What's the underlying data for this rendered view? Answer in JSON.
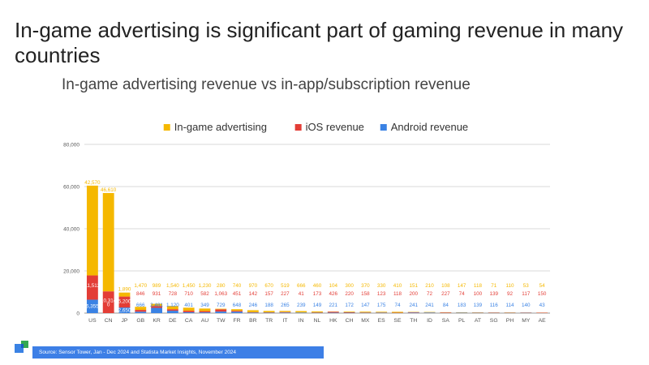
{
  "slide": {
    "title": "In-game advertising is significant part of gaming revenue in many countries",
    "subtitle": "In-game advertising revenue vs in-app/subscription revenue",
    "source": "Source: Sensor Tower, Jan - Dec 2024 and Statista Market Insights, November 2024"
  },
  "colors": {
    "advertising": "#f5b800",
    "ios": "#e33d36",
    "android": "#3a82e4",
    "grid": "#d9d9d9",
    "axis_text": "#555555",
    "source_bar": "#3d7fe6"
  },
  "chart_data": {
    "type": "bar",
    "stacked": true,
    "legend_position": "top-center",
    "grid": true,
    "ylim": [
      0,
      80000
    ],
    "yticks": [
      "0",
      "20,000",
      "40,000",
      "60,000",
      "80,000"
    ],
    "ytick_values": [
      0,
      20000,
      40000,
      60000,
      80000
    ],
    "categories": [
      "US",
      "CN",
      "JP",
      "GB",
      "KR",
      "DE",
      "CA",
      "AU",
      "TW",
      "FR",
      "BR",
      "TR",
      "IT",
      "IN",
      "NL",
      "HK",
      "CH",
      "MX",
      "ES",
      "SE",
      "TH",
      "ID",
      "SA",
      "PL",
      "AT",
      "SG",
      "PH",
      "MY",
      "AE"
    ],
    "series": [
      {
        "name": "Android revenue",
        "color": "#3a82e4",
        "values": [
          6355,
          0,
          2650,
          666,
          2481,
          1120,
          401,
          349,
          729,
          648,
          246,
          188,
          265,
          239,
          149,
          221,
          172,
          147,
          175,
          74,
          241,
          241,
          84,
          183,
          139,
          116,
          114,
          140,
          43
        ],
        "labels": [
          "6,355",
          "",
          "2,650",
          "666",
          "2,481",
          "1,120",
          "401",
          "349",
          "729",
          "648",
          "246",
          "188",
          "265",
          "239",
          "149",
          "221",
          "172",
          "147",
          "175",
          "74",
          "241",
          "241",
          "84",
          "183",
          "139",
          "116",
          "114",
          "140",
          "43"
        ]
      },
      {
        "name": "iOS revenue",
        "color": "#e33d36",
        "values": [
          11512,
          10314,
          5200,
          846,
          931,
          728,
          710,
          582,
          1063,
          451,
          142,
          157,
          227,
          41,
          173,
          426,
          220,
          158,
          123,
          118,
          200,
          72,
          227,
          74,
          100,
          139,
          92,
          117,
          150
        ],
        "labels": [
          "11,512",
          "10,314",
          "5,200",
          "846",
          "931",
          "728",
          "710",
          "582",
          "1,063",
          "451",
          "142",
          "157",
          "227",
          "41",
          "173",
          "426",
          "220",
          "158",
          "123",
          "118",
          "200",
          "72",
          "227",
          "74",
          "100",
          "139",
          "92",
          "117",
          "150"
        ]
      },
      {
        "name": "In-game advertising",
        "color": "#f5b800",
        "values": [
          42570,
          46610,
          1890,
          1470,
          989,
          1540,
          1450,
          1230,
          280,
          740,
          970,
          670,
          519,
          666,
          460,
          104,
          300,
          370,
          330,
          410,
          151,
          210,
          108,
          147,
          118,
          71,
          110,
          53,
          54
        ],
        "labels": [
          "42,570",
          "46,610",
          "1,890",
          "1,470",
          "989",
          "1,540",
          "1,450",
          "1,230",
          "280",
          "740",
          "970",
          "670",
          "519",
          "666",
          "460",
          "104",
          "300",
          "370",
          "330",
          "410",
          "151",
          "210",
          "108",
          "147",
          "118",
          "71",
          "110",
          "53",
          "54"
        ]
      }
    ],
    "legend_order": [
      "In-game advertising",
      "iOS revenue",
      "Android revenue"
    ],
    "special_labels": [
      {
        "category": "CN",
        "series": "Android revenue",
        "text": "0"
      }
    ]
  }
}
